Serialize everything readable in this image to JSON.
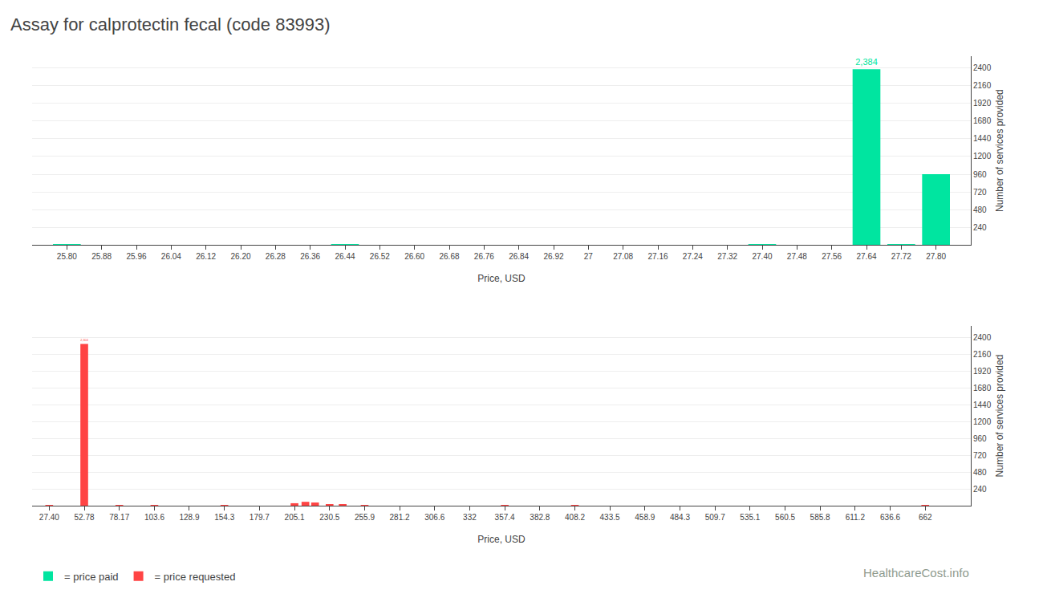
{
  "chart_data": [
    {
      "type": "bar",
      "title": "Assay for calprotectin fecal (code 83993)",
      "xlabel": "Price, USD",
      "ylabel": "Number of services provided",
      "x": [
        25.8,
        26.44,
        27.4,
        27.64,
        27.72,
        27.8
      ],
      "series": [
        {
          "name": "= price paid",
          "color": "#00e5a0",
          "values": [
            6,
            6,
            8,
            2384,
            6,
            960
          ],
          "value_labels": [
            null,
            null,
            null,
            "2,384",
            null,
            null
          ]
        }
      ],
      "xlim": [
        25.72,
        27.88
      ],
      "ylim": [
        0,
        2560
      ],
      "xticks": [
        {
          "value": 25.8,
          "label": "25.80"
        },
        25.88,
        25.96,
        26.04,
        26.12,
        {
          "value": 26.2,
          "label": "26.20"
        },
        26.28,
        26.36,
        26.44,
        26.52,
        {
          "value": 26.6,
          "label": "26.60"
        },
        26.68,
        26.76,
        26.84,
        26.92,
        27,
        27.08,
        27.16,
        27.24,
        27.32,
        {
          "value": 27.4,
          "label": "27.40"
        },
        27.48,
        27.56,
        27.64,
        27.72,
        {
          "value": 27.8,
          "label": "27.80"
        }
      ],
      "yticks": [
        240,
        480,
        720,
        960,
        1200,
        1440,
        1680,
        1920,
        2160,
        2400
      ],
      "grid": true,
      "legend": "lower left"
    },
    {
      "type": "bar",
      "xlabel": "Price, USD",
      "ylabel": "Number of services provided",
      "x": [
        27.4,
        52.78,
        78.17,
        103.6,
        154.3,
        205.1,
        213.0,
        220.0,
        230.5,
        240.0,
        255.9,
        357.4,
        408.2,
        662
      ],
      "series": [
        {
          "name": "= price requested",
          "color": "#ff4444",
          "values": [
            6,
            2304,
            4,
            6,
            5,
            35,
            55,
            45,
            18,
            12,
            6,
            6,
            10,
            6
          ],
          "value_labels": [
            null,
            "2,304",
            null,
            null,
            null,
            null,
            null,
            null,
            null,
            null,
            null,
            null,
            null,
            null
          ]
        }
      ],
      "xlim": [
        15,
        695
      ],
      "ylim": [
        0,
        2560
      ],
      "xticks": [
        {
          "value": 27.4,
          "label": "27.40"
        },
        52.78,
        78.17,
        103.6,
        128.9,
        154.3,
        179.7,
        205.1,
        230.5,
        255.9,
        281.2,
        306.6,
        332,
        357.4,
        382.8,
        408.2,
        433.5,
        458.9,
        484.3,
        509.7,
        535.1,
        560.5,
        585.8,
        611.2,
        636.6,
        662
      ],
      "yticks": [
        240,
        480,
        720,
        960,
        1200,
        1440,
        1680,
        1920,
        2160,
        2400
      ],
      "grid": true,
      "legend": "lower left",
      "annotations": [
        "HealthcareCost.info"
      ]
    }
  ]
}
